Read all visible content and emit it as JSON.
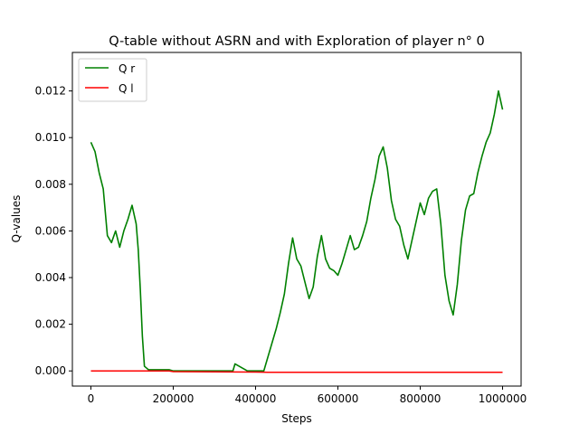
{
  "chart_data": {
    "type": "line",
    "title": "Q-table without ASRN and with Exploration of player n° 0",
    "xlabel": "Steps",
    "ylabel": "Q-values",
    "xlim": [
      -45000,
      1045000
    ],
    "ylim": [
      -0.00065,
      0.01365
    ],
    "xticks": [
      0,
      200000,
      400000,
      600000,
      800000,
      1000000
    ],
    "xtick_labels": [
      "0",
      "200000",
      "400000",
      "600000",
      "800000",
      "1000000"
    ],
    "yticks": [
      0,
      0.002,
      0.004,
      0.006,
      0.008,
      0.01,
      0.012
    ],
    "ytick_labels": [
      "0.000",
      "0.002",
      "0.004",
      "0.006",
      "0.008",
      "0.010",
      "0.012"
    ],
    "grid": false,
    "legend": "top-left",
    "series": [
      {
        "name": "Q r",
        "color": "#008000",
        "x": [
          0,
          10000,
          20000,
          30000,
          40000,
          50000,
          60000,
          70000,
          80000,
          90000,
          100000,
          110000,
          115000,
          120000,
          125000,
          130000,
          140000,
          160000,
          190000,
          200000,
          230000,
          260000,
          290000,
          320000,
          345000,
          350000,
          380000,
          410000,
          420000,
          425000,
          430000,
          440000,
          450000,
          460000,
          470000,
          480000,
          490000,
          500000,
          510000,
          520000,
          530000,
          540000,
          550000,
          560000,
          570000,
          580000,
          590000,
          600000,
          610000,
          620000,
          630000,
          640000,
          650000,
          660000,
          670000,
          680000,
          690000,
          700000,
          710000,
          720000,
          730000,
          740000,
          750000,
          760000,
          770000,
          780000,
          790000,
          800000,
          810000,
          820000,
          830000,
          840000,
          850000,
          860000,
          870000,
          880000,
          890000,
          900000,
          910000,
          920000,
          930000,
          940000,
          950000,
          960000,
          970000,
          980000,
          990000,
          1000000
        ],
        "y": [
          0.0098,
          0.0094,
          0.0085,
          0.0078,
          0.0058,
          0.0055,
          0.006,
          0.0053,
          0.006,
          0.0065,
          0.0071,
          0.0063,
          0.0052,
          0.0035,
          0.0015,
          0.0002,
          5e-05,
          5e-05,
          5e-05,
          0.0,
          0.0,
          0.0,
          0.0,
          0.0,
          0.0,
          0.0003,
          0.0,
          0.0,
          0.0,
          0.0003,
          0.0006,
          0.0012,
          0.0018,
          0.0025,
          0.0033,
          0.0046,
          0.0057,
          0.0048,
          0.0045,
          0.0038,
          0.0031,
          0.0036,
          0.0049,
          0.0058,
          0.0048,
          0.0044,
          0.0043,
          0.0041,
          0.0046,
          0.0052,
          0.0058,
          0.0052,
          0.0053,
          0.0058,
          0.0064,
          0.0074,
          0.0082,
          0.0092,
          0.0096,
          0.0087,
          0.0073,
          0.0065,
          0.0062,
          0.0054,
          0.0048,
          0.0056,
          0.0064,
          0.0072,
          0.0067,
          0.0074,
          0.0077,
          0.0078,
          0.0063,
          0.0041,
          0.003,
          0.0024,
          0.0037,
          0.0056,
          0.0069,
          0.0075,
          0.0076,
          0.0085,
          0.0092,
          0.0098,
          0.0102,
          0.011,
          0.012,
          0.0112
        ]
      },
      {
        "name": "Q l",
        "color": "#ff0000",
        "x": [
          0,
          120000,
          190000,
          200000,
          300000,
          400000,
          430000,
          600000,
          800000,
          1000000
        ],
        "y": [
          0.0,
          0.0,
          0.0,
          -3e-05,
          -4e-05,
          -5e-05,
          -6e-05,
          -6e-05,
          -6e-05,
          -6e-05
        ]
      }
    ]
  }
}
